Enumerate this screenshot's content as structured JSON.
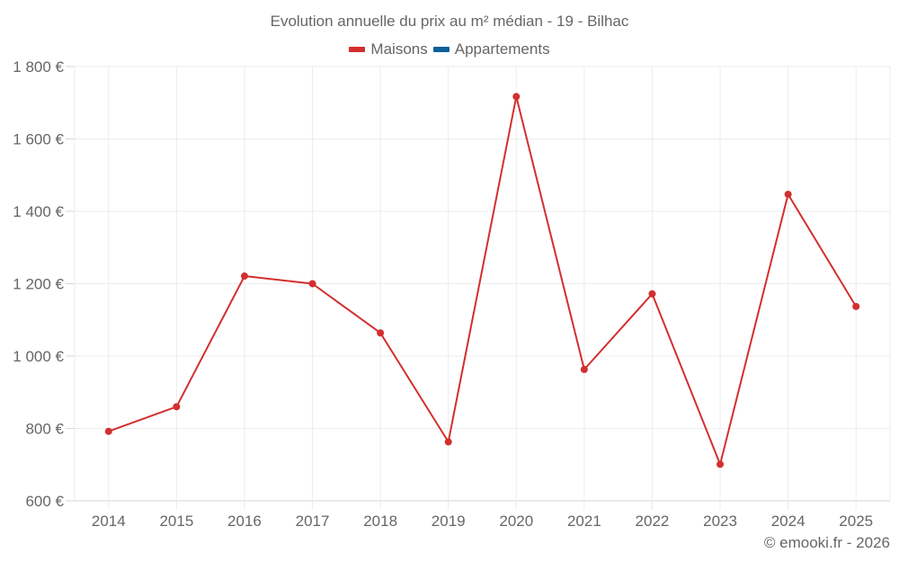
{
  "chart_data": {
    "type": "line",
    "title": "Evolution annuelle du prix au m² médian - 19 - Bilhac",
    "xlabel": "",
    "ylabel": "",
    "categories": [
      "2014",
      "2015",
      "2016",
      "2017",
      "2018",
      "2019",
      "2020",
      "2021",
      "2022",
      "2023",
      "2024",
      "2025"
    ],
    "series": [
      {
        "name": "Maisons",
        "color": "#d32f2f",
        "values": [
          792,
          860,
          1221,
          1200,
          1064,
          763,
          1717,
          963,
          1172,
          701,
          1447,
          1137
        ]
      },
      {
        "name": "Appartements",
        "color": "#0d5f9a",
        "values": []
      }
    ],
    "ylim": [
      600,
      1800
    ],
    "yticks": [
      600,
      800,
      1000,
      1200,
      1400,
      1600,
      1800
    ],
    "ytick_labels": [
      "600 €",
      "800 €",
      "1 000 €",
      "1 200 €",
      "1 400 €",
      "1 600 €",
      "1 800 €"
    ],
    "grid": true,
    "legend_position": "top"
  },
  "header": {
    "title": "Evolution annuelle du prix au m² médian - 19 - Bilhac"
  },
  "legend": {
    "items": [
      {
        "label": "Maisons",
        "color": "#d32f2f"
      },
      {
        "label": "Appartements",
        "color": "#0d5f9a"
      }
    ]
  },
  "footer": {
    "credit": "© emooki.fr - 2026"
  }
}
